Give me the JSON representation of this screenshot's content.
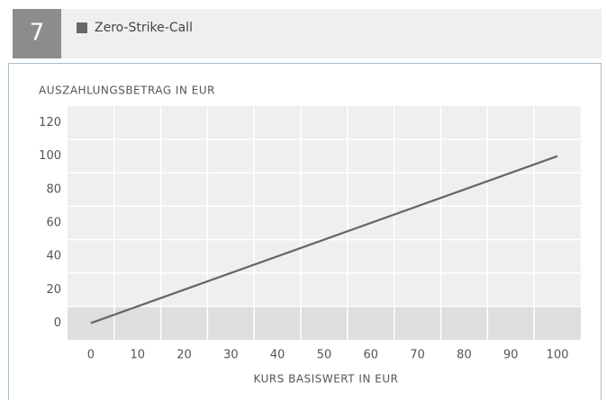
{
  "chart_number": "7",
  "chart_data": {
    "type": "line",
    "title": "Zero-Strike-Call",
    "y_label": "AUSZAHLUNGSBETRAG IN EUR",
    "x_label": "KURS BASISWERT IN EUR",
    "x": [
      0,
      100
    ],
    "series": [
      {
        "name": "Zero-Strike-Call",
        "color": "#666666",
        "values": [
          0,
          100
        ]
      }
    ],
    "xlim": [
      -5,
      105
    ],
    "xticks": [
      0,
      10,
      20,
      30,
      40,
      50,
      60,
      70,
      80,
      90,
      100
    ],
    "ylim": [
      -10,
      130
    ],
    "yticks": [
      0,
      20,
      40,
      60,
      80,
      100,
      120
    ],
    "grid": true
  }
}
